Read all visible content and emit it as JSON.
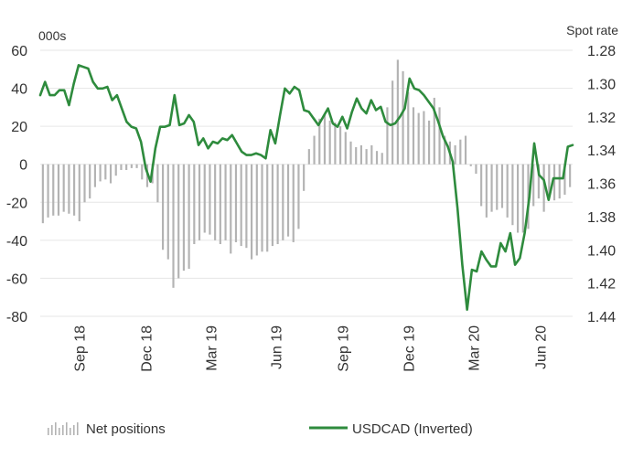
{
  "chart_data": {
    "type": "bar+line",
    "left_axis": {
      "unit_label": "000s",
      "ylim": [
        -80,
        60
      ],
      "ticks": [
        60,
        40,
        20,
        0,
        -20,
        -40,
        -60,
        -80
      ]
    },
    "right_axis": {
      "unit_label": "Spot rate",
      "ylim": [
        1.28,
        1.44
      ],
      "inverted": true,
      "ticks": [
        "1.28",
        "1.30",
        "1.32",
        "1.34",
        "1.36",
        "1.38",
        "1.40",
        "1.42",
        "1.44"
      ]
    },
    "x_ticks": [
      "Sep 18",
      "Dec 18",
      "Mar 19",
      "Jun 19",
      "Sep 19",
      "Dec 19",
      "Mar 20",
      "Jun 20"
    ],
    "legend": {
      "bars_label": "Net positions",
      "line_label": "USDCAD (Inverted)"
    },
    "colors": {
      "bars": "#b3b3b3",
      "line": "#2e8b3d",
      "grid": "#e6e6e6",
      "text": "#333333"
    },
    "series": [
      {
        "name": "Net positions",
        "axis": "left",
        "values": [
          -31,
          -28,
          -27,
          -27,
          -25,
          -26,
          -27,
          -30,
          -20,
          -18,
          -12,
          -9,
          -8,
          -10,
          -6,
          -3,
          -3,
          -2,
          -2,
          -8,
          -12,
          -10,
          -20,
          -45,
          -50,
          -65,
          -60,
          -56,
          -55,
          -42,
          -40,
          -36,
          -37,
          -40,
          -42,
          -40,
          -47,
          -41,
          -43,
          -44,
          -50,
          -48,
          -46,
          -46,
          -43,
          -42,
          -40,
          -38,
          -41,
          -34,
          -14,
          8,
          15,
          24,
          26,
          23,
          22,
          20,
          17,
          12,
          9,
          10,
          8,
          10,
          7,
          6,
          30,
          44,
          55,
          49,
          38,
          30,
          27,
          28,
          23,
          35,
          30,
          15,
          12,
          10,
          13,
          15,
          -1,
          -5,
          -22,
          -28,
          -25,
          -24,
          -23,
          -28,
          -32,
          -36,
          -36,
          -34,
          -22,
          -18,
          -25,
          -17,
          -19,
          -18,
          -16,
          -12
        ]
      },
      {
        "name": "USDCAD (Inverted)",
        "axis": "right",
        "values": [
          1.307,
          1.299,
          1.307,
          1.307,
          1.304,
          1.304,
          1.313,
          1.3,
          1.289,
          1.29,
          1.291,
          1.299,
          1.303,
          1.303,
          1.302,
          1.31,
          1.307,
          1.315,
          1.323,
          1.326,
          1.327,
          1.335,
          1.351,
          1.359,
          1.339,
          1.326,
          1.326,
          1.325,
          1.307,
          1.325,
          1.324,
          1.319,
          1.323,
          1.337,
          1.333,
          1.339,
          1.335,
          1.336,
          1.333,
          1.334,
          1.331,
          1.336,
          1.341,
          1.343,
          1.343,
          1.342,
          1.343,
          1.345,
          1.328,
          1.336,
          1.319,
          1.303,
          1.306,
          1.302,
          1.304,
          1.316,
          1.317,
          1.321,
          1.325,
          1.32,
          1.315,
          1.324,
          1.326,
          1.32,
          1.327,
          1.317,
          1.309,
          1.315,
          1.318,
          1.31,
          1.316,
          1.314,
          1.323,
          1.325,
          1.324,
          1.32,
          1.315,
          1.297,
          1.303,
          1.304,
          1.307,
          1.311,
          1.315,
          1.323,
          1.332,
          1.338,
          1.347,
          1.375,
          1.409,
          1.436,
          1.412,
          1.413,
          1.401,
          1.406,
          1.41,
          1.41,
          1.396,
          1.401,
          1.39,
          1.409,
          1.405,
          1.39,
          1.368,
          1.336,
          1.355,
          1.358,
          1.37,
          1.357,
          1.357,
          1.357,
          1.338,
          1.337
        ]
      }
    ]
  }
}
